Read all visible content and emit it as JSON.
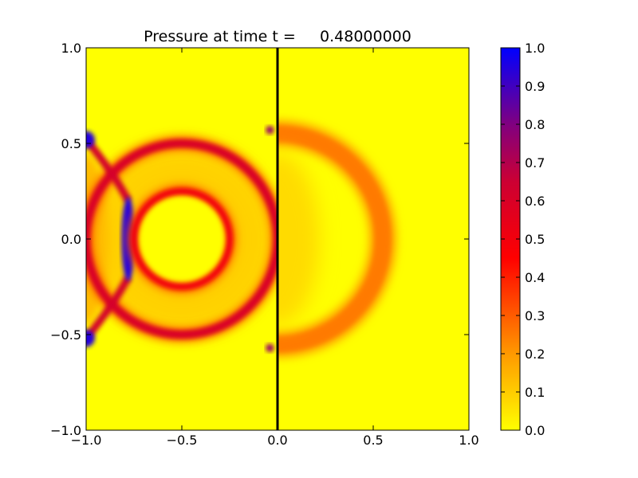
{
  "chart_data": {
    "type": "heatmap",
    "title": "Pressure at time t =     0.48000000",
    "xlabel": "",
    "ylabel": "",
    "xlim": [
      -1.0,
      1.0
    ],
    "ylim": [
      -1.0,
      1.0
    ],
    "x_ticks": [
      -1.0,
      -0.5,
      0.0,
      0.5,
      1.0
    ],
    "x_tick_labels": [
      "−1.0",
      "−0.5",
      "0.0",
      "0.5",
      "1.0"
    ],
    "y_ticks": [
      -1.0,
      -0.5,
      0.0,
      0.5,
      1.0
    ],
    "y_tick_labels": [
      "−1.0",
      "−0.5",
      "0.0",
      "0.5",
      "1.0"
    ],
    "grid": false,
    "interface_line_x": 0.0,
    "colorbar": {
      "min": 0.0,
      "max": 1.0,
      "ticks": [
        0.0,
        0.1,
        0.2,
        0.3,
        0.4,
        0.5,
        0.6,
        0.7,
        0.8,
        0.9,
        1.0
      ],
      "tick_labels": [
        "0.0",
        "0.1",
        "0.2",
        "0.3",
        "0.4",
        "0.5",
        "0.6",
        "0.7",
        "0.8",
        "0.9",
        "1.0"
      ],
      "colors": [
        {
          "value": 0.0,
          "color": "#ffff00"
        },
        {
          "value": 0.2,
          "color": "#ff9900"
        },
        {
          "value": 0.45,
          "color": "#ff0000"
        },
        {
          "value": 0.65,
          "color": "#cc0033"
        },
        {
          "value": 0.8,
          "color": "#800080"
        },
        {
          "value": 1.0,
          "color": "#0000ff"
        }
      ]
    },
    "features": [
      {
        "name": "outer-ring-left",
        "center": [
          -0.5,
          0.0
        ],
        "radius": 0.5,
        "value": 0.6,
        "region": "x<0"
      },
      {
        "name": "inner-ring",
        "center": [
          -0.5,
          0.0
        ],
        "radius": 0.25,
        "value": 0.5,
        "region": "all"
      },
      {
        "name": "transmitted-wave",
        "center": [
          0.0,
          0.0
        ],
        "radius": 0.55,
        "value": 0.25,
        "region": "x>0"
      },
      {
        "name": "focus-band",
        "x": -0.78,
        "y_range": [
          -0.2,
          0.2
        ],
        "value": 0.95
      },
      {
        "name": "edge-spot-upper",
        "x": -1.0,
        "y": 0.52,
        "value": 0.95
      },
      {
        "name": "edge-spot-lower",
        "x": -1.0,
        "y": -0.52,
        "value": 0.95
      },
      {
        "name": "interface-spot-upper",
        "x": -0.04,
        "y": 0.57,
        "value": 0.75
      },
      {
        "name": "interface-spot-lower",
        "x": -0.04,
        "y": -0.57,
        "value": 0.75
      }
    ]
  }
}
